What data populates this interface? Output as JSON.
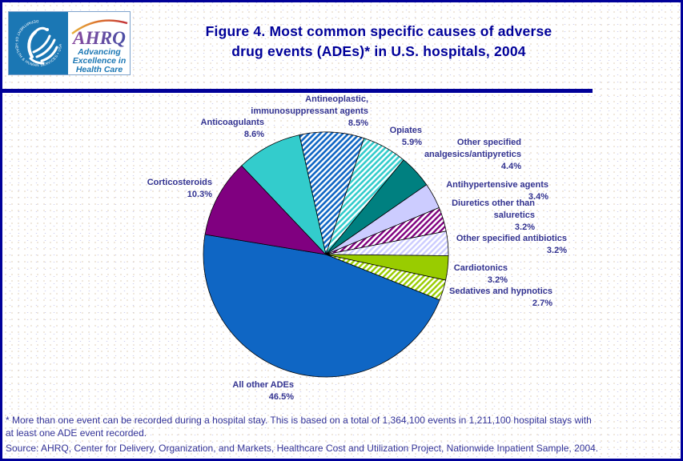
{
  "header": {
    "title_line1": "Figure 4. Most common specific causes of adverse",
    "title_line2": "drug events (ADEs)* in U.S. hospitals, 2004",
    "logo": {
      "acronym": "AHRQ",
      "tagline_line1": "Advancing",
      "tagline_line2": "Excellence in",
      "tagline_line3": "Health Care",
      "hhs_ring_text": "DEPARTMENT OF HEALTH & HUMAN SERVICES • USA"
    }
  },
  "chart_data": {
    "type": "pie",
    "title": "Most common specific causes of adverse drug events (ADEs) in U.S. hospitals, 2004",
    "units": "percent of events",
    "start_angle_deg": -12.5,
    "direction": "clockwise",
    "legend": "none (labels outside slices)",
    "slices": [
      {
        "id": "antineoplastic",
        "label": "Antineoplastic, immunosuppressant agents",
        "label_lines": [
          "Antineoplastic,",
          "immunosuppressant agents"
        ],
        "pct_label": "8.5%",
        "value": 8.5,
        "fill": {
          "style": "stripes",
          "bg": "#0F66C4",
          "fg": "#FFFFFF"
        }
      },
      {
        "id": "opiates",
        "label": "Opiates",
        "label_lines": [
          "Opiates"
        ],
        "pct_label": "5.9%",
        "value": 5.9,
        "fill": {
          "style": "stripes",
          "bg": "#33CCCC",
          "fg": "#FFFFFF"
        }
      },
      {
        "id": "analgesics",
        "label": "Other specified analgesics/antipyretics",
        "label_lines": [
          "Other specified",
          "analgesics/antipyretics"
        ],
        "pct_label": "4.4%",
        "value": 4.4,
        "fill": {
          "style": "solid",
          "color": "#008080"
        }
      },
      {
        "id": "antihypertensive",
        "label": "Antihypertensive agents",
        "label_lines": [
          "Antihypertensive agents"
        ],
        "pct_label": "3.4%",
        "value": 3.4,
        "fill": {
          "style": "solid",
          "color": "#CCCCFF"
        }
      },
      {
        "id": "diuretics",
        "label": "Diuretics other than saluretics",
        "label_lines": [
          "Diuretics other than",
          "saluretics"
        ],
        "pct_label": "3.2%",
        "value": 3.2,
        "fill": {
          "style": "stripes",
          "bg": "#FFFFFF",
          "fg": "#800080"
        }
      },
      {
        "id": "antibiotics",
        "label": "Other specified antibiotics",
        "label_lines": [
          "Other specified antibiotics"
        ],
        "pct_label": "3.2%",
        "value": 3.2,
        "fill": {
          "style": "stripes",
          "bg": "#FFFFFF",
          "fg": "#CCCCFF"
        }
      },
      {
        "id": "cardiotonics",
        "label": "Cardiotonics",
        "label_lines": [
          "Cardiotonics"
        ],
        "pct_label": "3.2%",
        "value": 3.2,
        "fill": {
          "style": "solid",
          "color": "#99CC00"
        }
      },
      {
        "id": "sedatives",
        "label": "Sedatives and hypnotics",
        "label_lines": [
          "Sedatives and hypnotics"
        ],
        "pct_label": "2.7%",
        "value": 2.7,
        "fill": {
          "style": "stripes",
          "bg": "#FFFFFF",
          "fg": "#99CC00"
        }
      },
      {
        "id": "all_other",
        "label": "All other ADEs",
        "label_lines": [
          "All other ADEs"
        ],
        "pct_label": "46.5%",
        "value": 46.5,
        "fill": {
          "style": "solid",
          "color": "#0F66C4"
        }
      },
      {
        "id": "corticosteroids",
        "label": "Corticosteroids",
        "label_lines": [
          "Corticosteroids"
        ],
        "pct_label": "10.3%",
        "value": 10.3,
        "fill": {
          "style": "solid",
          "color": "#800080"
        }
      },
      {
        "id": "anticoagulants",
        "label": "Anticoagulants",
        "label_lines": [
          "Anticoagulants"
        ],
        "pct_label": "8.6%",
        "value": 8.6,
        "fill": {
          "style": "solid",
          "color": "#33CCCC"
        }
      }
    ]
  },
  "footnotes": {
    "note_line1": "* More than one event can be recorded during a hospital stay. This is based on a total of 1,364,100 events in 1,211,100 hospital stays with",
    "note_line2": "at least one ADE event recorded.",
    "source": "Source: AHRQ, Center for Delivery, Organization, and Markets, Healthcare Cost and Utilization Project, Nationwide Inpatient Sample, 2004."
  },
  "colors": {
    "page_border": "#000099",
    "title_text": "#000099",
    "label_text": "#333391",
    "footnote_text": "#333399",
    "divider": "#000099",
    "hhs_seal_blue": "#1B77B4",
    "ahrq_wordmark": "#5C4FA5"
  }
}
